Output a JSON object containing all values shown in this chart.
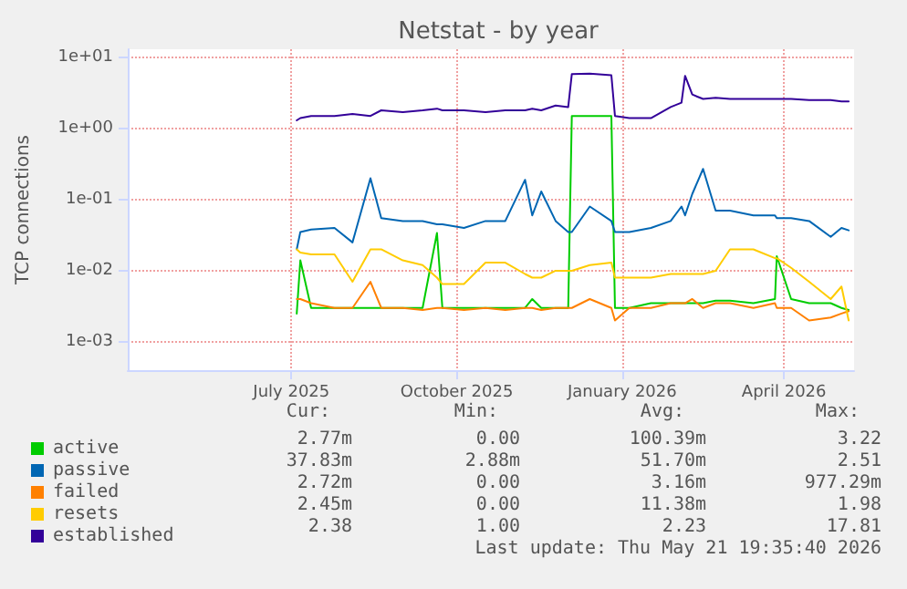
{
  "chart_data": {
    "type": "line",
    "title": "Netstat - by year",
    "ylabel": "TCP connections",
    "x": [
      "2025-07-04",
      "2025-07-06",
      "2025-07-12",
      "2025-07-25",
      "2025-08-04",
      "2025-08-14",
      "2025-08-20",
      "2025-09-01",
      "2025-09-12",
      "2025-09-20",
      "2025-09-23",
      "2025-10-05",
      "2025-10-17",
      "2025-10-28",
      "2025-11-08",
      "2025-11-12",
      "2025-11-17",
      "2025-11-25",
      "2025-12-02",
      "2025-12-04",
      "2025-12-14",
      "2025-12-26",
      "2025-12-28",
      "2026-01-05",
      "2026-01-17",
      "2026-01-28",
      "2026-02-03",
      "2026-02-05",
      "2026-02-09",
      "2026-02-15",
      "2026-02-22",
      "2026-03-02",
      "2026-03-15",
      "2026-03-27",
      "2026-03-28",
      "2026-04-05",
      "2026-04-15",
      "2026-04-27",
      "2026-05-03",
      "2026-05-07"
    ],
    "series": [
      {
        "name": "active",
        "color": "#00cc00",
        "values": [
          0.0025,
          0.014,
          0.003,
          0.003,
          0.003,
          0.003,
          0.003,
          0.003,
          0.003,
          0.034,
          0.003,
          0.003,
          0.003,
          0.003,
          0.003,
          0.004,
          0.003,
          0.003,
          0.003,
          1.5,
          1.5,
          1.5,
          0.003,
          0.003,
          0.0035,
          0.0035,
          0.0035,
          0.0035,
          0.0035,
          0.0035,
          0.0038,
          0.0038,
          0.0035,
          0.004,
          0.016,
          0.004,
          0.0035,
          0.0035,
          0.003,
          0.0028
        ]
      },
      {
        "name": "passive",
        "color": "#0066b3",
        "values": [
          0.02,
          0.035,
          0.038,
          0.04,
          0.025,
          0.2,
          0.055,
          0.05,
          0.05,
          0.045,
          0.045,
          0.04,
          0.05,
          0.05,
          0.19,
          0.06,
          0.13,
          0.05,
          0.035,
          0.035,
          0.08,
          0.05,
          0.035,
          0.035,
          0.04,
          0.05,
          0.08,
          0.06,
          0.12,
          0.27,
          0.07,
          0.07,
          0.06,
          0.06,
          0.055,
          0.055,
          0.05,
          0.03,
          0.04,
          0.037
        ]
      },
      {
        "name": "failed",
        "color": "#ff8000",
        "values": [
          0.004,
          0.004,
          0.0035,
          0.003,
          0.003,
          0.007,
          0.003,
          0.003,
          0.0028,
          0.003,
          0.003,
          0.0028,
          0.003,
          0.0028,
          0.003,
          0.003,
          0.0028,
          0.003,
          0.003,
          0.003,
          0.004,
          0.003,
          0.002,
          0.003,
          0.003,
          0.0035,
          0.0035,
          0.0035,
          0.004,
          0.003,
          0.0035,
          0.0035,
          0.003,
          0.0035,
          0.003,
          0.003,
          0.002,
          0.0022,
          0.0025,
          0.0027
        ]
      },
      {
        "name": "resets",
        "color": "#ffcc00",
        "values": [
          0.02,
          0.018,
          0.017,
          0.017,
          0.007,
          0.02,
          0.02,
          0.014,
          0.012,
          0.008,
          0.0065,
          0.0065,
          0.013,
          0.013,
          0.009,
          0.008,
          0.008,
          0.01,
          0.01,
          0.01,
          0.012,
          0.013,
          0.008,
          0.008,
          0.008,
          0.009,
          0.009,
          0.009,
          0.009,
          0.009,
          0.01,
          0.02,
          0.02,
          0.015,
          0.015,
          0.011,
          0.007,
          0.004,
          0.006,
          0.002
        ]
      },
      {
        "name": "established",
        "color": "#330099",
        "values": [
          1.3,
          1.4,
          1.5,
          1.5,
          1.6,
          1.5,
          1.8,
          1.7,
          1.8,
          1.9,
          1.8,
          1.8,
          1.7,
          1.8,
          1.8,
          1.9,
          1.8,
          2.1,
          2.0,
          5.8,
          5.9,
          5.6,
          1.5,
          1.4,
          1.4,
          2.0,
          2.3,
          5.5,
          3.0,
          2.6,
          2.7,
          2.6,
          2.6,
          2.6,
          2.6,
          2.6,
          2.5,
          2.5,
          2.4,
          2.4
        ]
      }
    ],
    "xlim": [
      "2025-04-01",
      "2026-05-10"
    ],
    "xticks": [
      {
        "value": "2025-07-01",
        "label": "July 2025"
      },
      {
        "value": "2025-10-01",
        "label": "October 2025"
      },
      {
        "value": "2026-01-01",
        "label": "January 2026"
      },
      {
        "value": "2026-04-01",
        "label": "April 2026"
      }
    ],
    "ylim": [
      0.0004,
      13
    ],
    "yticks": [
      {
        "value": 0.001,
        "label": "1e-03"
      },
      {
        "value": 0.01,
        "label": "1e-02"
      },
      {
        "value": 0.1,
        "label": "1e-01"
      },
      {
        "value": 1,
        "label": "1e+00"
      },
      {
        "value": 10,
        "label": "1e+01"
      }
    ],
    "log": "y",
    "grid": true,
    "legend": "bottom left",
    "marker": "none",
    "line_style": "solid",
    "annotations": [
      "Cur:",
      "Min:",
      "Avg:",
      "Max:",
      "2.77m",
      "0.00",
      "100.39m",
      "3.22",
      "37.83m",
      "2.88m",
      "51.70m",
      "2.51",
      "2.72m",
      "0.00",
      "3.16m",
      "977.29m",
      "2.45m",
      "0.00",
      "11.38m",
      "1.98",
      "2.38",
      "1.00",
      "2.23",
      "17.81",
      "Last update: Thu May 21 19:35:40 2026"
    ]
  }
}
